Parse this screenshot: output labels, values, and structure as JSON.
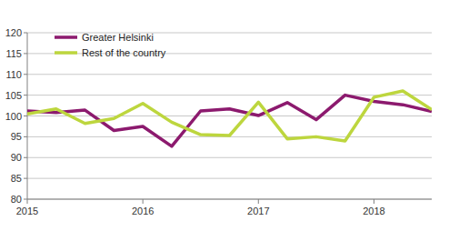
{
  "chart_data": {
    "type": "line",
    "categories": [
      "2015",
      null,
      null,
      null,
      "2016",
      null,
      null,
      null,
      "2017",
      null,
      null,
      null,
      "2018",
      null,
      null
    ],
    "series": [
      {
        "name": "Greater Helsinki",
        "color": "#8c1a6e",
        "values": [
          101.2,
          100.8,
          101.4,
          96.5,
          97.5,
          92.7,
          101.2,
          101.7,
          100.1,
          103.2,
          99.1,
          105.0,
          103.5,
          102.7,
          101.1
        ]
      },
      {
        "name": "Rest of the country",
        "color": "#bdd63e",
        "values": [
          100.5,
          101.7,
          98.2,
          99.4,
          103.0,
          98.5,
          95.5,
          95.3,
          103.3,
          94.5,
          95.0,
          94.0,
          104.5,
          106.0,
          101.5
        ]
      }
    ],
    "ylim": [
      80,
      120
    ],
    "yticks": [
      80,
      85,
      90,
      95,
      100,
      105,
      110,
      115,
      120
    ],
    "grid": true,
    "legend": "upper left"
  }
}
